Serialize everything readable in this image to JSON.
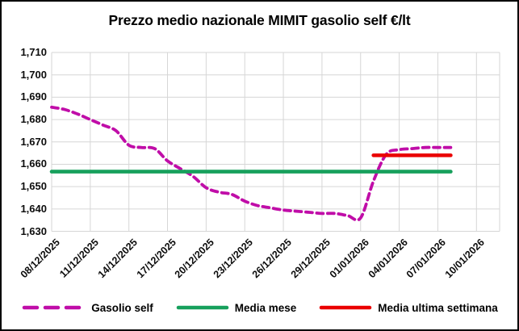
{
  "colors": {
    "gasolio_self": "#C00DA8",
    "media_mese": "#17A05C",
    "media_ultima_settimana": "#EA0000",
    "grid": "#D6D6D6",
    "text": "#000000",
    "frame": "#000000",
    "background": "#FFFFFF"
  },
  "chart_data": {
    "type": "line",
    "title": "Prezzo medio nazionale MIMIT gasolio self €/lt",
    "xlabel": "",
    "ylabel": "",
    "ylim": [
      1630,
      1710
    ],
    "ytick_step": 10,
    "ytick_labels": [
      "1,630",
      "1,640",
      "1,650",
      "1,660",
      "1,670",
      "1,680",
      "1,690",
      "1,700",
      "1,710"
    ],
    "xtick_labels": [
      "08/12/2025",
      "11/12/2025",
      "14/12/2025",
      "17/12/2025",
      "20/12/2025",
      "23/12/2025",
      "26/12/2025",
      "29/12/2025",
      "01/01/2026",
      "04/01/2026",
      "07/01/2026",
      "10/01/2026"
    ],
    "xtick_every_days": 3,
    "x_overhang_days": 1.8,
    "grid": true,
    "legend_position": "bottom",
    "categories": [
      "08/12/2025",
      "09/12/2025",
      "10/12/2025",
      "11/12/2025",
      "12/12/2025",
      "13/12/2025",
      "14/12/2025",
      "15/12/2025",
      "16/12/2025",
      "17/12/2025",
      "18/12/2025",
      "19/12/2025",
      "20/12/2025",
      "21/12/2025",
      "22/12/2025",
      "23/12/2025",
      "24/12/2025",
      "25/12/2025",
      "26/12/2025",
      "27/12/2025",
      "28/12/2025",
      "29/12/2025",
      "30/12/2025",
      "31/12/2025",
      "01/01/2026",
      "02/01/2026",
      "03/01/2026",
      "04/01/2026",
      "05/01/2026",
      "06/01/2026",
      "07/01/2026",
      "08/01/2026"
    ],
    "series": [
      {
        "name": "Gasolio self",
        "style": "dashed",
        "smooth": true,
        "color": "#C00DA8",
        "values": [
          1685.5,
          1684.5,
          1682.5,
          1680,
          1677.5,
          1675,
          1668.5,
          1667.5,
          1667,
          1661.5,
          1658,
          1654.5,
          1649.5,
          1647.5,
          1646.5,
          1643.5,
          1641.5,
          1640.5,
          1639.5,
          1639,
          1638.5,
          1638,
          1638,
          1637,
          1636,
          1652.5,
          1664.5,
          1666.5,
          1667,
          1667.5,
          1667.5,
          1667.5
        ]
      },
      {
        "name": "Media mese",
        "style": "solid",
        "color": "#17A05C",
        "value": 1656.7,
        "from": "08/12/2025",
        "to": "08/01/2026",
        "from_day": 0,
        "to_day": 31
      },
      {
        "name": "Media ultima settimana",
        "style": "solid",
        "color": "#EA0000",
        "value": 1664,
        "from": "02/01/2026",
        "to": "08/01/2026",
        "from_day": 25,
        "to_day": 31
      }
    ]
  }
}
